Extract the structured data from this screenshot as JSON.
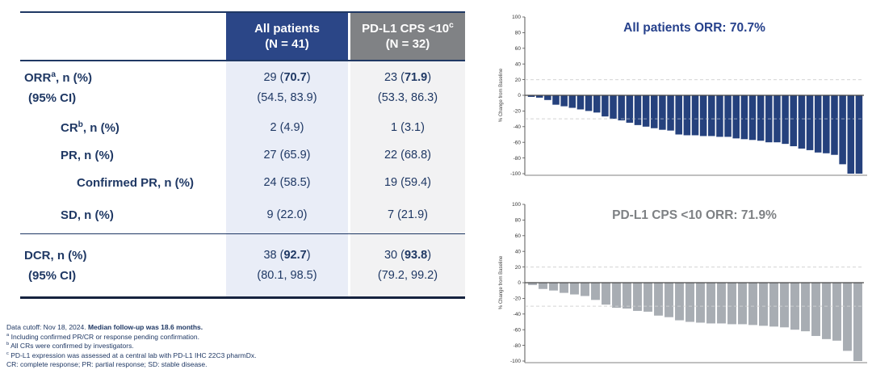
{
  "colors": {
    "header_blue": "#2B4687",
    "header_gray": "#808285",
    "column_blue_bg": "#E9EDF7",
    "column_gray_bg": "#F2F2F3",
    "text_navy": "#1F3864",
    "bar_navy": "#25417D",
    "bar_gray": "#A8ADB3",
    "title_navy": "#26418C",
    "title_gray": "#7E8184"
  },
  "table": {
    "columns": [
      {
        "label": "All patients",
        "sup": "",
        "sublabel": "(N = 41)"
      },
      {
        "label": "PD-L1 CPS <10",
        "sup": "c",
        "sublabel": "(N = 32)"
      }
    ],
    "rows": [
      {
        "indent": 0,
        "separator_after": false,
        "lines": [
          {
            "label": {
              "text": "ORR",
              "sup": "a",
              "rest": ", n (%)"
            },
            "cells": [
              {
                "pre": "29 (",
                "bold": "70.7",
                "post": ")"
              },
              {
                "pre": "23 (",
                "bold": "71.9",
                "post": ")"
              }
            ]
          },
          {
            "label": {
              "text": "(95% CI)",
              "sup": "",
              "rest": ""
            },
            "cells": [
              {
                "pre": "(54.5, 83.9)",
                "bold": "",
                "post": ""
              },
              {
                "pre": "(53.3, 86.3)",
                "bold": "",
                "post": ""
              }
            ]
          }
        ]
      },
      {
        "indent": 1,
        "separator_after": false,
        "lines": [
          {
            "label": {
              "text": "CR",
              "sup": "b",
              "rest": ", n (%)"
            },
            "cells": [
              {
                "pre": "2 (4.9)",
                "bold": "",
                "post": ""
              },
              {
                "pre": "1 (3.1)",
                "bold": "",
                "post": ""
              }
            ]
          }
        ]
      },
      {
        "indent": 1,
        "separator_after": false,
        "lines": [
          {
            "label": {
              "text": "PR",
              "sup": "",
              "rest": ", n (%)"
            },
            "cells": [
              {
                "pre": "27 (65.9)",
                "bold": "",
                "post": ""
              },
              {
                "pre": "22 (68.8)",
                "bold": "",
                "post": ""
              }
            ]
          }
        ]
      },
      {
        "indent": 2,
        "separator_after": false,
        "lines": [
          {
            "label": {
              "text": "Confirmed PR",
              "sup": "",
              "rest": ", n (%)"
            },
            "cells": [
              {
                "pre": "24 (58.5)",
                "bold": "",
                "post": ""
              },
              {
                "pre": "19 (59.4)",
                "bold": "",
                "post": ""
              }
            ]
          }
        ]
      },
      {
        "indent": 1,
        "separator_after": true,
        "lines": [
          {
            "label": {
              "text": "SD",
              "sup": "",
              "rest": ", n (%)"
            },
            "cells": [
              {
                "pre": "9 (22.0)",
                "bold": "",
                "post": ""
              },
              {
                "pre": "7 (21.9)",
                "bold": "",
                "post": ""
              }
            ]
          }
        ]
      },
      {
        "indent": 0,
        "separator_after": false,
        "lines": [
          {
            "label": {
              "text": "DCR",
              "sup": "",
              "rest": ", n (%)"
            },
            "cells": [
              {
                "pre": "38 (",
                "bold": "92.7",
                "post": ")"
              },
              {
                "pre": "30 (",
                "bold": "93.8",
                "post": ")"
              }
            ]
          },
          {
            "label": {
              "text": "(95% CI)",
              "sup": "",
              "rest": ""
            },
            "cells": [
              {
                "pre": "(80.1, 98.5)",
                "bold": "",
                "post": ""
              },
              {
                "pre": "(79.2, 99.2)",
                "bold": "",
                "post": ""
              }
            ]
          }
        ]
      }
    ]
  },
  "chart_data": [
    {
      "type": "bar",
      "title": "All patients ORR: 70.7%",
      "title_color": "#26418C",
      "xlabel": "",
      "ylabel": "% Change from Baseline",
      "ylim": [
        -100,
        100
      ],
      "yticks": [
        100,
        80,
        60,
        40,
        20,
        0,
        -20,
        -40,
        -60,
        -80,
        -100
      ],
      "reference_lines": [
        20,
        -30
      ],
      "grid": false,
      "legend": false,
      "bar_color": "#25417D",
      "values": [
        -2,
        -3,
        -6,
        -12,
        -14,
        -16,
        -18,
        -20,
        -22,
        -27,
        -30,
        -32,
        -35,
        -38,
        -40,
        -42,
        -44,
        -45,
        -50,
        -51,
        -51,
        -52,
        -52,
        -53,
        -53,
        -55,
        -56,
        -57,
        -58,
        -60,
        -60,
        -62,
        -65,
        -68,
        -70,
        -73,
        -74,
        -76,
        -88,
        -100,
        -100
      ]
    },
    {
      "type": "bar",
      "title": "PD-L1 CPS <10 ORR: 71.9%",
      "title_color": "#7E8184",
      "xlabel": "",
      "ylabel": "% Change from Baseline",
      "ylim": [
        -100,
        100
      ],
      "yticks": [
        100,
        80,
        60,
        40,
        20,
        0,
        -20,
        -40,
        -60,
        -80,
        -100
      ],
      "reference_lines": [
        20,
        -30
      ],
      "grid": false,
      "legend": false,
      "bar_color": "#A8ADB3",
      "values": [
        -3,
        -8,
        -10,
        -13,
        -15,
        -17,
        -22,
        -28,
        -32,
        -33,
        -36,
        -37,
        -42,
        -44,
        -48,
        -50,
        -51,
        -52,
        -52,
        -53,
        -53,
        -54,
        -55,
        -56,
        -57,
        -60,
        -62,
        -68,
        -72,
        -74,
        -87,
        -100
      ]
    }
  ],
  "footnotes": {
    "line1_pre": "Data cutoff: Nov 18, 2024. ",
    "line1_bold": "Median follow-up was 18.6 months.",
    "items": [
      {
        "sup": "a",
        "text": "Including confirmed PR/CR or response pending confirmation."
      },
      {
        "sup": "b",
        "text": "All CRs were confirmed by investigators."
      },
      {
        "sup": "c",
        "text": "PD-L1 expression was assessed at a central lab with PD-L1 IHC 22C3 pharmDx."
      },
      {
        "sup": "",
        "text": "CR: complete response; PR: partial response; SD: stable disease."
      }
    ]
  }
}
